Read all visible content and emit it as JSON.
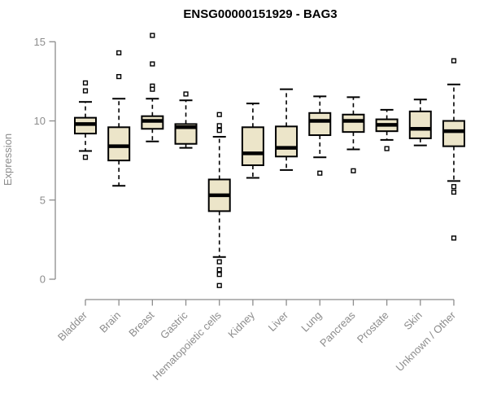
{
  "title": "ENSG00000151929 - BAG3",
  "colors": {
    "box_fill": "#ece5c9",
    "box_border": "#000000",
    "median": "#000000",
    "outlier_fill": "#ffffff",
    "axis": "#8c8c8c",
    "tick_label": "#8c8c8c",
    "title": "#000000",
    "background": "#ffffff"
  },
  "chart_data": {
    "type": "boxplot",
    "title": "ENSG00000151929 - BAG3",
    "xlabel": "",
    "ylabel": "Expression",
    "ylim": [
      -0.8,
      15.6
    ],
    "yticks": [
      0,
      5,
      10,
      15
    ],
    "grid": false,
    "legend": false,
    "x_tick_rotation_deg": 45,
    "categories": [
      "Bladder",
      "Brain",
      "Breast",
      "Gastric",
      "Hematopoietic cells",
      "Kidney",
      "Liver",
      "Lung",
      "Pancreas",
      "Prostate",
      "Skin",
      "Unknown / Other"
    ],
    "boxes": [
      {
        "category": "Bladder",
        "whisker_low": 8.1,
        "q1": 9.2,
        "median": 9.8,
        "q3": 10.2,
        "whisker_high": 11.2,
        "outliers": [
          12.4,
          11.9,
          7.7
        ]
      },
      {
        "category": "Brain",
        "whisker_low": 5.9,
        "q1": 7.5,
        "median": 8.4,
        "q3": 9.6,
        "whisker_high": 11.4,
        "outliers": [
          14.3,
          12.8
        ]
      },
      {
        "category": "Breast",
        "whisker_low": 8.7,
        "q1": 9.5,
        "median": 10.0,
        "q3": 10.3,
        "whisker_high": 11.4,
        "outliers": [
          15.4,
          13.6,
          12.2,
          12.0
        ]
      },
      {
        "category": "Gastric",
        "whisker_low": 8.3,
        "q1": 8.55,
        "median": 9.6,
        "q3": 9.8,
        "whisker_high": 11.3,
        "outliers": [
          11.7
        ]
      },
      {
        "category": "Hematopoietic cells",
        "whisker_low": 1.4,
        "q1": 4.3,
        "median": 5.3,
        "q3": 6.3,
        "whisker_high": 9.0,
        "outliers": [
          10.4,
          9.7,
          9.4,
          1.1,
          0.6,
          0.3,
          -0.4
        ]
      },
      {
        "category": "Kidney",
        "whisker_low": 6.4,
        "q1": 7.2,
        "median": 7.95,
        "q3": 9.6,
        "whisker_high": 11.1,
        "outliers": []
      },
      {
        "category": "Liver",
        "whisker_low": 6.9,
        "q1": 7.75,
        "median": 8.3,
        "q3": 9.65,
        "whisker_high": 12.0,
        "outliers": []
      },
      {
        "category": "Lung",
        "whisker_low": 7.7,
        "q1": 9.1,
        "median": 10.0,
        "q3": 10.5,
        "whisker_high": 11.55,
        "outliers": [
          6.7
        ]
      },
      {
        "category": "Pancreas",
        "whisker_low": 8.2,
        "q1": 9.3,
        "median": 10.0,
        "q3": 10.4,
        "whisker_high": 11.5,
        "outliers": [
          6.85
        ]
      },
      {
        "category": "Prostate",
        "whisker_low": 8.8,
        "q1": 9.35,
        "median": 9.75,
        "q3": 10.1,
        "whisker_high": 10.7,
        "outliers": [
          8.25
        ]
      },
      {
        "category": "Skin",
        "whisker_low": 8.45,
        "q1": 8.9,
        "median": 9.5,
        "q3": 10.6,
        "whisker_high": 11.35,
        "outliers": []
      },
      {
        "category": "Unknown / Other",
        "whisker_low": 6.2,
        "q1": 8.4,
        "median": 9.35,
        "q3": 10.0,
        "whisker_high": 12.3,
        "outliers": [
          13.8,
          5.85,
          5.5,
          2.6
        ]
      }
    ]
  }
}
